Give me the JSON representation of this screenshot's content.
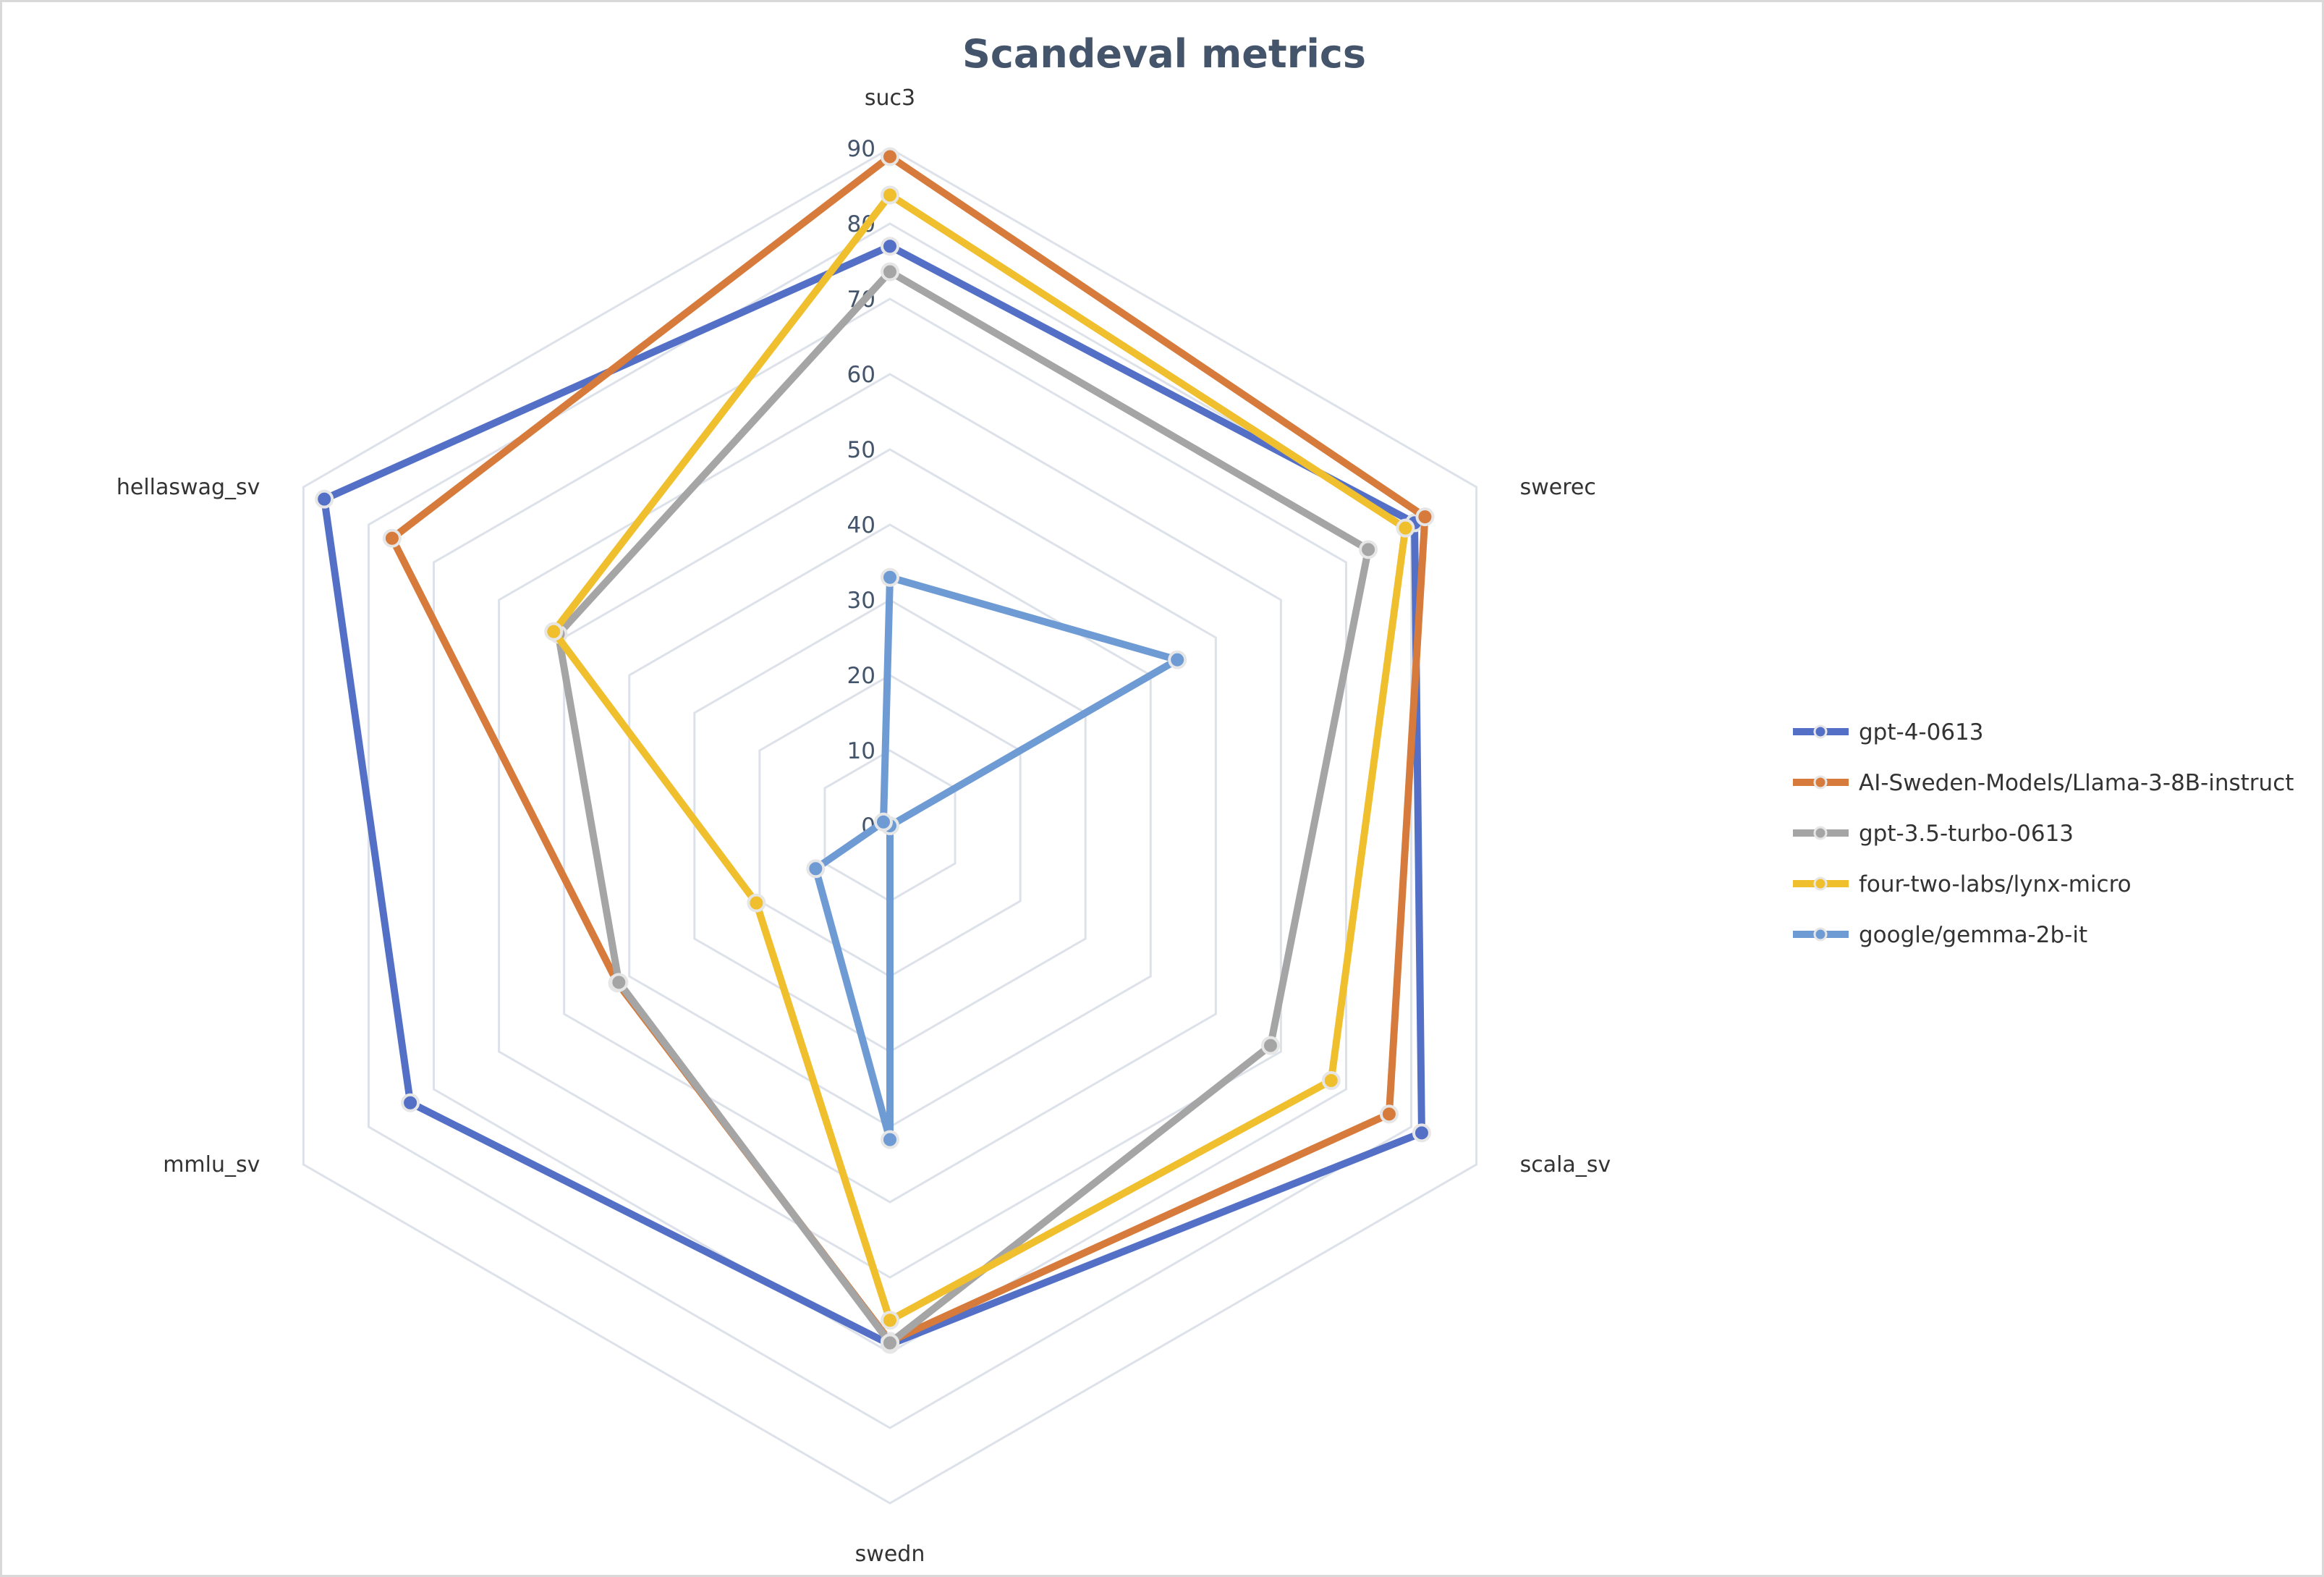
{
  "chart_data": {
    "type": "radar",
    "title": "Scandeval metrics",
    "categories": [
      "suc3",
      "swerec",
      "scala_sv",
      "swedn",
      "mmlu_sv",
      "hellaswag_sv"
    ],
    "rlim": [
      0,
      90
    ],
    "ticks": [
      "0",
      "10",
      "20",
      "30",
      "40",
      "50",
      "60",
      "70",
      "80",
      "90"
    ],
    "grid": true,
    "legend": "right",
    "series": [
      {
        "name": "gpt-4-0613",
        "color": "#5470c6",
        "values": [
          77.0,
          80.5,
          81.6,
          68.9,
          73.6,
          86.8
        ]
      },
      {
        "name": "AI-Sweden-Models/Llama-3-8B-instruct",
        "color": "#d67b3b",
        "values": [
          88.9,
          82.1,
          76.6,
          68.5,
          41.8,
          76.4
        ]
      },
      {
        "name": "gpt-3.5-turbo-0613",
        "color": "#a5a5a5",
        "values": [
          73.6,
          73.4,
          58.4,
          68.7,
          41.6,
          50.9
        ]
      },
      {
        "name": "four-two-labs/lynx-micro",
        "color": "#f0bf2e",
        "values": [
          83.8,
          79.1,
          67.7,
          65.7,
          20.5,
          51.6
        ]
      },
      {
        "name": "google/gemma-2b-it",
        "color": "#6f9bd4",
        "values": [
          33.0,
          44.1,
          0.0,
          41.7,
          11.4,
          1.0
        ]
      }
    ]
  }
}
